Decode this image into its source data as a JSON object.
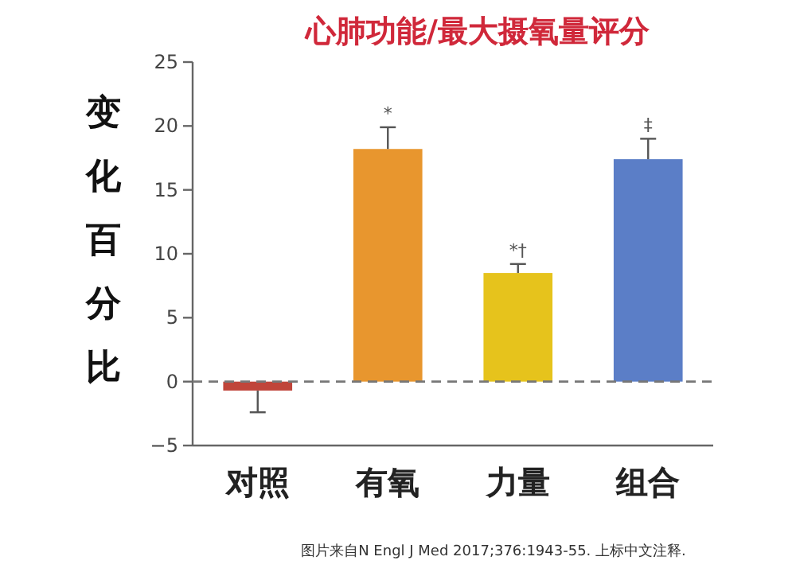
{
  "chart_data": {
    "type": "bar",
    "title": "心肺功能/最大摄氧量评分",
    "ylabel": "变化百分比",
    "categories": [
      "对照",
      "有氧",
      "力量",
      "组合"
    ],
    "values": [
      -0.7,
      18.2,
      8.5,
      17.4
    ],
    "colors": [
      "#c0453a",
      "#e8962e",
      "#e6c31c",
      "#5b7ec7"
    ],
    "errors": [
      [
        -2.4,
        -0.7
      ],
      [
        18.2,
        19.9
      ],
      [
        8.5,
        9.2
      ],
      [
        17.4,
        19.0
      ]
    ],
    "ylim": [
      -5,
      25
    ],
    "yticks": [
      {
        "value": -5,
        "label": "−5"
      },
      0,
      5,
      10,
      15,
      20,
      25
    ],
    "ref_lines": [
      {
        "axis": "y",
        "value": 0,
        "color": "#777777",
        "line_style": "dashed"
      }
    ],
    "grid": false,
    "annotations": [
      {
        "text": "*",
        "x": "有氧",
        "y": 19.9
      },
      {
        "text": "*†",
        "x": "力量",
        "y": 9.2
      },
      {
        "text": "‡",
        "x": "组合",
        "y": 19.0
      },
      "图片来自N Engl J Med 2017;376:1943-55. 上标中文注释."
    ]
  }
}
